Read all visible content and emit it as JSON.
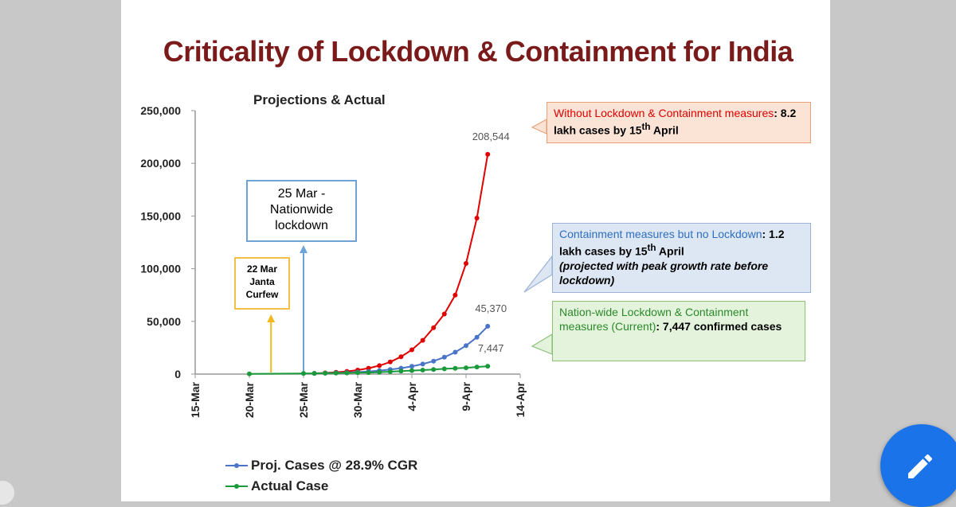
{
  "title": "Criticality of Lockdown & Containment for India",
  "chart_data": {
    "type": "line",
    "title": "Projections & Actual",
    "xlabel": "",
    "ylabel": "",
    "x_tick_labels": [
      "15-Mar",
      "20-Mar",
      "25-Mar",
      "30-Mar",
      "4-Apr",
      "9-Apr",
      "14-Apr"
    ],
    "x_tick_dates": [
      "2020-03-15",
      "2020-03-20",
      "2020-03-25",
      "2020-03-30",
      "2020-04-04",
      "2020-04-09",
      "2020-04-14"
    ],
    "y_tick_labels": [
      "0",
      "50,000",
      "100,000",
      "150,000",
      "200,000",
      "250,000"
    ],
    "y_tick_values": [
      0,
      50000,
      100000,
      150000,
      200000,
      250000
    ],
    "xlim": [
      "2020-03-15",
      "2020-04-14"
    ],
    "ylim": [
      0,
      250000
    ],
    "grid": false,
    "legend_position": "bottom-left",
    "series": [
      {
        "name": "",
        "color": "#e00000",
        "x": [
          "2020-03-26",
          "2020-03-27",
          "2020-03-28",
          "2020-03-29",
          "2020-03-30",
          "2020-03-31",
          "2020-04-01",
          "2020-04-02",
          "2020-04-03",
          "2020-04-04",
          "2020-04-05",
          "2020-04-06",
          "2020-04-07",
          "2020-04-08",
          "2020-04-09",
          "2020-04-10",
          "2020-04-11"
        ],
        "y": [
          700,
          1100,
          1700,
          2600,
          3800,
          5600,
          8000,
          11500,
          16500,
          23000,
          32000,
          44000,
          57000,
          75000,
          105000,
          148000,
          208544
        ],
        "end_label": "208,544"
      },
      {
        "name": "Proj. Cases @ 28.9% CGR",
        "color": "#4a74c9",
        "x": [
          "2020-03-26",
          "2020-03-27",
          "2020-03-28",
          "2020-03-29",
          "2020-03-30",
          "2020-03-31",
          "2020-04-01",
          "2020-04-02",
          "2020-04-03",
          "2020-04-04",
          "2020-04-05",
          "2020-04-06",
          "2020-04-07",
          "2020-04-08",
          "2020-04-09",
          "2020-04-10",
          "2020-04-11"
        ],
        "y": [
          650,
          850,
          1100,
          1450,
          1900,
          2500,
          3300,
          4300,
          5600,
          7300,
          9500,
          12300,
          16000,
          20800,
          27000,
          35000,
          45370
        ],
        "end_label": "45,370"
      },
      {
        "name": "Actual Case",
        "color": "#1a9a3a",
        "x": [
          "2020-03-20",
          "2020-03-25",
          "2020-03-26",
          "2020-03-27",
          "2020-03-28",
          "2020-03-29",
          "2020-03-30",
          "2020-03-31",
          "2020-04-01",
          "2020-04-02",
          "2020-04-03",
          "2020-04-04",
          "2020-04-05",
          "2020-04-06",
          "2020-04-07",
          "2020-04-08",
          "2020-04-09",
          "2020-04-10",
          "2020-04-11"
        ],
        "y": [
          250,
          600,
          700,
          850,
          950,
          1050,
          1250,
          1400,
          1850,
          2300,
          2900,
          3300,
          3800,
          4300,
          5000,
          5500,
          6000,
          6700,
          7447
        ],
        "end_label": "7,447"
      }
    ],
    "markers": [
      {
        "date": "2020-03-22",
        "color": "#f2b820",
        "text": "22 Mar Janta Curfew"
      },
      {
        "date": "2020-03-25",
        "color": "#6fa3d8",
        "text": "25 Mar - Nationwide lockdown"
      }
    ]
  },
  "callouts": {
    "red": {
      "highlight": "Without Lockdown & Containment measures",
      "rest_a": ": 8.2 lakh cases by 15",
      "sup": "th",
      "rest_b": " April"
    },
    "blue": {
      "highlight": "Containment measures but no Lockdown",
      "rest_a": ": 1.2 lakh cases by 15",
      "sup": "th",
      "rest_b": " April",
      "note": "(projected with peak growth rate before lockdown)"
    },
    "green": {
      "highlight": "Nation-wide Lockdown & Containment measures (Current)",
      "rest": ": 7,447 confirmed cases"
    }
  },
  "annotations": {
    "lockdown": "25 Mar - Nationwide lockdown",
    "janta": "22 Mar Janta Curfew"
  },
  "legend": [
    {
      "label": "Proj. Cases @ 28.9% CGR",
      "color": "#4a74c9"
    },
    {
      "label": "Actual Case",
      "color": "#1a9a3a"
    }
  ],
  "fab": {
    "icon": "pencil-icon"
  }
}
